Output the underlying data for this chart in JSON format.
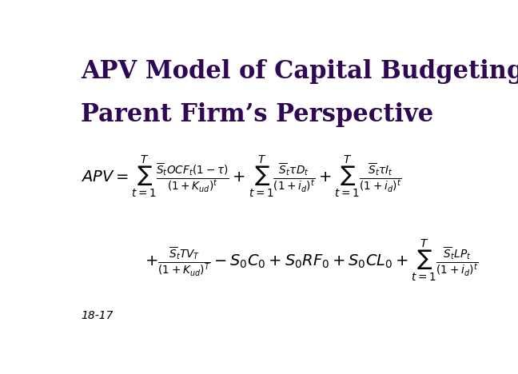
{
  "title_line1": "APV Model of Capital Budgeting from the",
  "title_line2": "Parent Firm’s Perspective",
  "title_color": "#2E0854",
  "title_fontsize": 22,
  "background_color": "#ffffff",
  "footer_text": "18-17",
  "footer_fontsize": 10,
  "formula_color": "#000000",
  "formula_line1": "$APV = \\sum_{t=1}^{T} \\frac{\\overline{S}_t OCF_t(1-\\tau)}{(1+K_{ud})^t} + \\sum_{t=1}^{T} \\frac{\\overline{S}_t \\tau D_t}{(1+i_d)^t} + \\sum_{t=1}^{T} \\frac{\\overline{S}_t \\tau I_t}{(1+i_d)^t}$",
  "formula_line2": "$+ \\frac{\\overline{S}_t TV_T}{(1+K_{ud})^T} - S_0 C_0 + S_0 RF_0 + S_0 CL_0 + \\sum_{t=1}^{T} \\frac{\\overline{S}_t LP_t}{(1+i_d)^t}$"
}
